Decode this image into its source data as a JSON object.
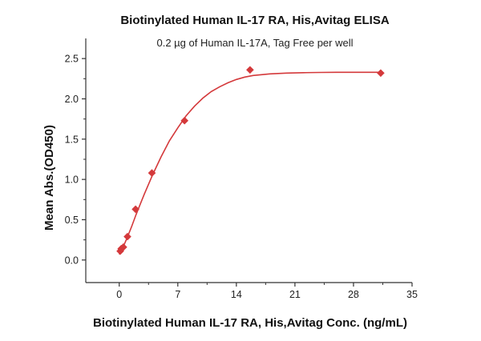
{
  "chart_data": {
    "type": "scatter",
    "title": "Biotinylated Human IL-17 RA, His,Avitag ELISA",
    "subtitle": "0.2 µg of Human IL-17A, Tag Free per well",
    "xlabel": "Biotinylated Human IL-17 RA, His,Avitag Conc. (ng/mL)",
    "ylabel": "Mean Abs.(OD450)",
    "xlim": [
      -4,
      35
    ],
    "ylim": [
      -0.28,
      2.75
    ],
    "xticks": [
      0,
      7,
      14,
      21,
      28,
      35
    ],
    "yticks": [
      0.0,
      0.5,
      1.0,
      1.5,
      2.0,
      2.5
    ],
    "ytick_labels": [
      "0.0",
      "0.5",
      "1.0",
      "1.5",
      "2.0",
      "2.5"
    ],
    "grid": false,
    "series": [
      {
        "color": "#d4393b",
        "marker": "diamond",
        "points": [
          {
            "x": 0.12,
            "y": 0.11
          },
          {
            "x": 0.24,
            "y": 0.14
          },
          {
            "x": 0.49,
            "y": 0.16
          },
          {
            "x": 0.98,
            "y": 0.29
          },
          {
            "x": 1.95,
            "y": 0.63
          },
          {
            "x": 3.91,
            "y": 1.08
          },
          {
            "x": 7.81,
            "y": 1.73
          },
          {
            "x": 15.63,
            "y": 2.36
          },
          {
            "x": 31.25,
            "y": 2.32
          }
        ],
        "fit_curve": [
          [
            0.0,
            0.07
          ],
          [
            0.5,
            0.17
          ],
          [
            1.0,
            0.29
          ],
          [
            1.5,
            0.42
          ],
          [
            2.0,
            0.56
          ],
          [
            2.5,
            0.69
          ],
          [
            3.0,
            0.82
          ],
          [
            3.5,
            0.94
          ],
          [
            4.0,
            1.06
          ],
          [
            5.0,
            1.28
          ],
          [
            6.0,
            1.48
          ],
          [
            7.0,
            1.64
          ],
          [
            8.0,
            1.79
          ],
          [
            9.0,
            1.91
          ],
          [
            10.0,
            2.01
          ],
          [
            11.0,
            2.09
          ],
          [
            12.0,
            2.15
          ],
          [
            13.0,
            2.2
          ],
          [
            14.0,
            2.24
          ],
          [
            15.0,
            2.27
          ],
          [
            16.0,
            2.29
          ],
          [
            18.0,
            2.31
          ],
          [
            20.0,
            2.32
          ],
          [
            22.0,
            2.325
          ],
          [
            24.0,
            2.328
          ],
          [
            26.0,
            2.33
          ],
          [
            28.0,
            2.33
          ],
          [
            31.25,
            2.33
          ]
        ]
      }
    ]
  }
}
